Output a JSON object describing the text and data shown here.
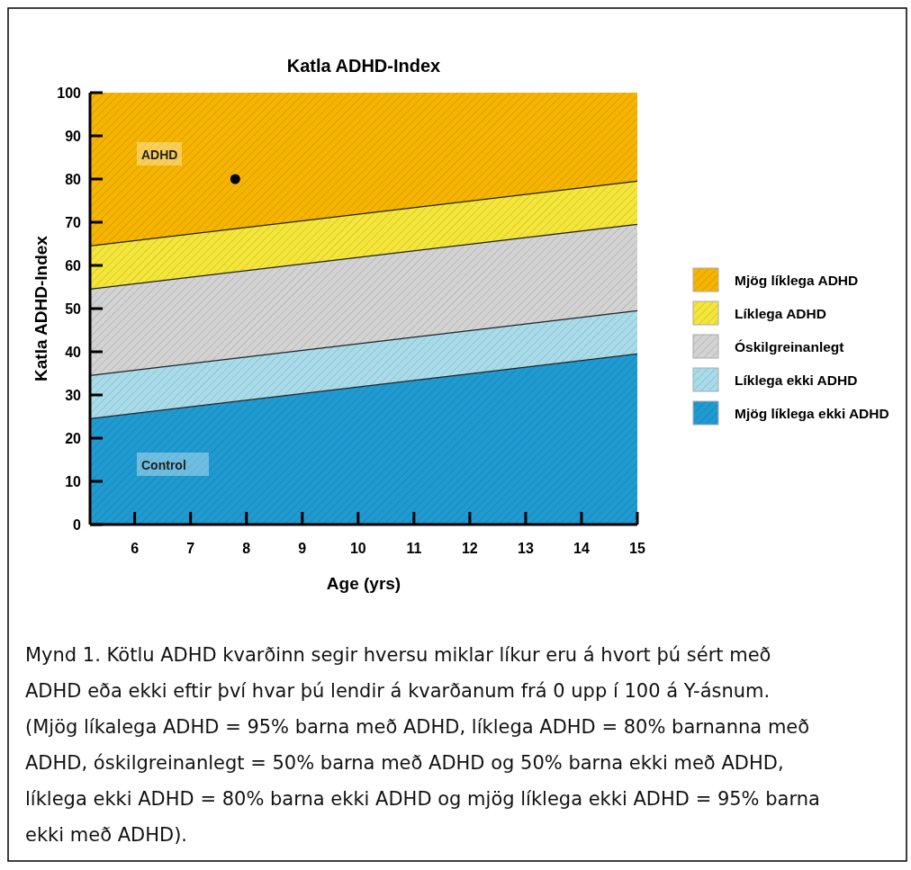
{
  "chart_data": {
    "type": "area",
    "title": "Katla ADHD-Index",
    "xlabel": "Age (yrs)",
    "ylabel": "Katla ADHD-Index",
    "x": [
      5.2,
      15
    ],
    "xlim": [
      5.2,
      15
    ],
    "xticks": [
      6,
      7,
      8,
      9,
      10,
      11,
      12,
      13,
      14,
      15
    ],
    "ylim": [
      0,
      100
    ],
    "yticks": [
      0,
      10,
      20,
      30,
      40,
      50,
      60,
      70,
      80,
      90,
      100
    ],
    "stacked": true,
    "legend": "right",
    "grid": false,
    "series": [
      {
        "name": "Mjög líklega ekki ADHD",
        "color": "#1f9bd1",
        "values": [
          24.5,
          39.5
        ]
      },
      {
        "name": "Líklega ekki ADHD",
        "color": "#a9dcea",
        "values": [
          10,
          10
        ]
      },
      {
        "name": "Óskilgreinanlegt",
        "color": "#d3d3d3",
        "values": [
          20,
          20
        ]
      },
      {
        "name": "Líklega ADHD",
        "color": "#f5e63a",
        "values": [
          10,
          10
        ]
      },
      {
        "name": "Mjög líklega ADHD",
        "color": "#f7b500",
        "values": [
          35.5,
          20.5
        ]
      },
      {
        "type": "scatter",
        "color": "#000000",
        "x": [
          7.8
        ],
        "values": [
          80
        ],
        "marker": "circle"
      }
    ],
    "annotations": [
      "ADHD",
      "Control",
      "Mynd 1. Kötlu ADHD kvarðinn segir hversu miklar líkur eru á hvort þú sért með ADHD eða ekki eftir því hvar þú lendir á kvarðanum frá 0 upp í 100 á Y-ásnum. (Mjög líkalega ADHD = 95% barna með ADHD, líklega ADHD = 80% barnanna með ADHD, óskilgreinanlegt = 50% barna með ADHD og 50% barna ekki með ADHD, líklega ekki ADHD = 80% barna ekki ADHD og mjög líklega ekki ADHD = 95% barna ekki með ADHD)."
    ]
  }
}
